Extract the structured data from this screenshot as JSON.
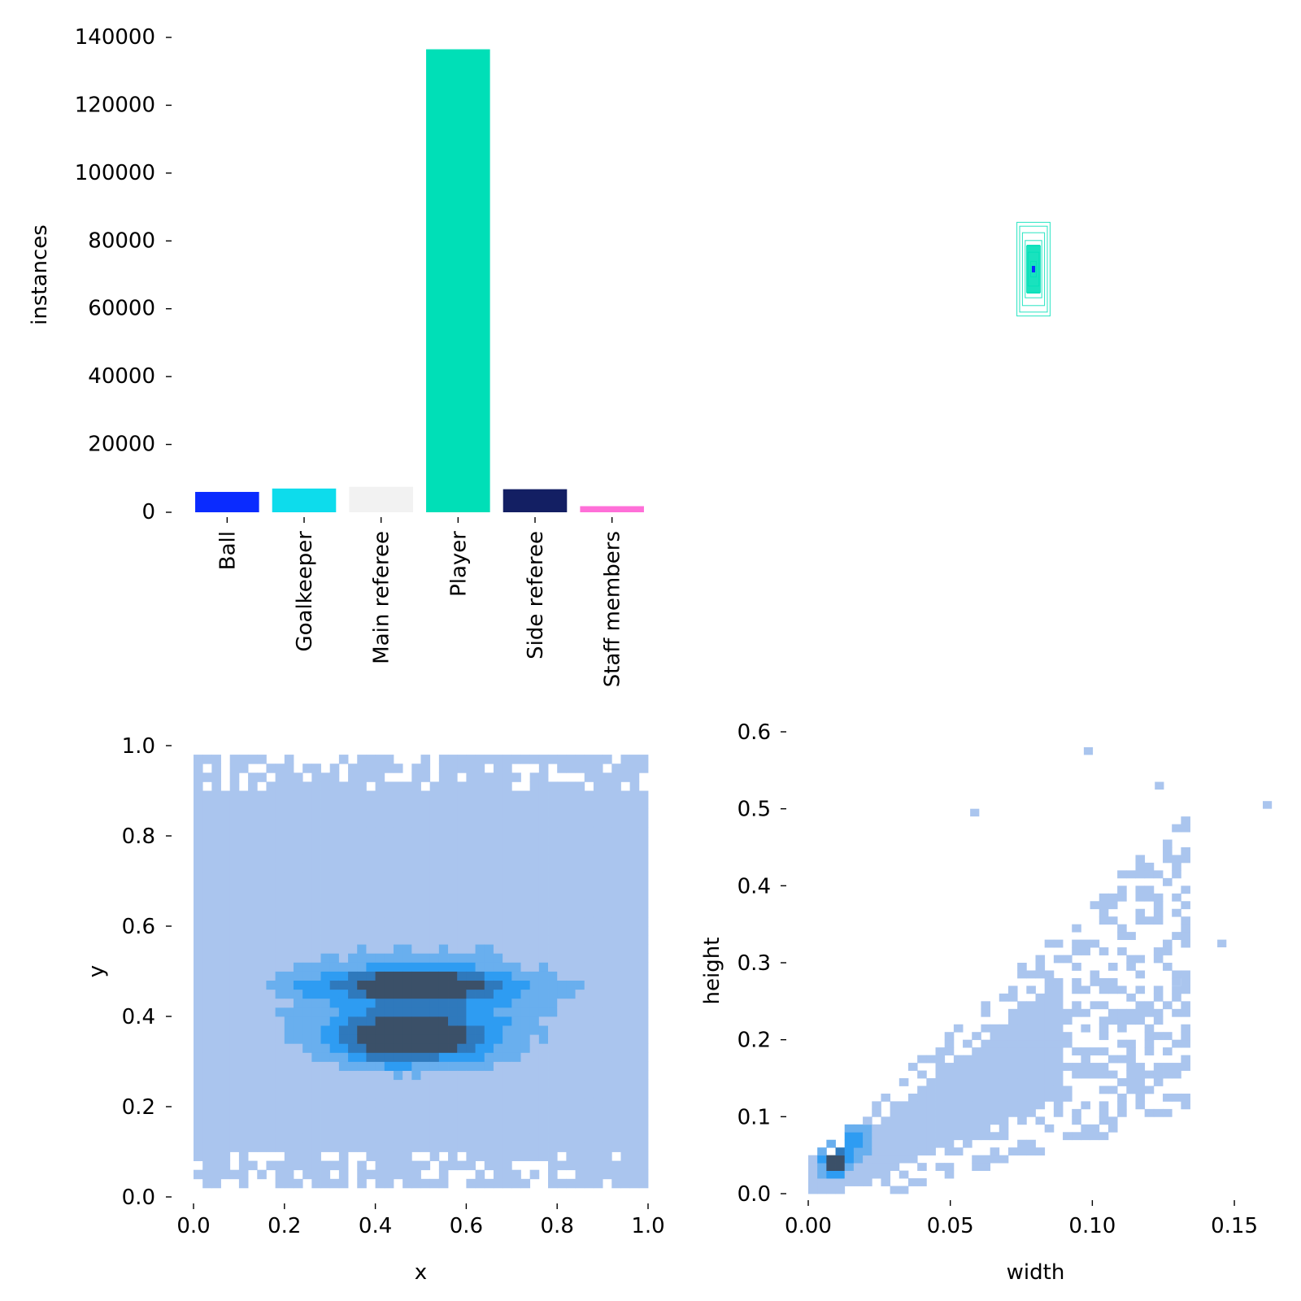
{
  "chart_data": [
    {
      "type": "bar",
      "ylabel": "instances",
      "ylim": [
        0,
        140000
      ],
      "yticks": [
        0,
        20000,
        40000,
        60000,
        80000,
        100000,
        120000,
        140000
      ],
      "categories": [
        "Ball",
        "Goalkeeper",
        "Main referee",
        "Player",
        "Side referee",
        "Staff members"
      ],
      "values": [
        6000,
        7000,
        7500,
        136500,
        6800,
        1800
      ],
      "colors": [
        "#0A2BFF",
        "#0DDCEC",
        "#F2F2F2",
        "#00DFB7",
        "#131F63",
        "#FF6FD8"
      ]
    },
    {
      "type": "box-overlay",
      "description_label": "bounding boxes",
      "color": "#00DFB7",
      "boxes_wh": [
        [
          0.12,
          0.36
        ],
        [
          0.1,
          0.33
        ],
        [
          0.08,
          0.28
        ],
        [
          0.06,
          0.22
        ],
        [
          0.05,
          0.18
        ],
        [
          0.04,
          0.13
        ],
        [
          0.02,
          0.06
        ],
        [
          0.01,
          0.02
        ]
      ]
    },
    {
      "type": "heatmap",
      "xlabel": "x",
      "ylabel": "y",
      "xlim": [
        0,
        1
      ],
      "ylim": [
        0,
        1
      ],
      "xticks": [
        "0.0",
        "0.2",
        "0.4",
        "0.6",
        "0.8",
        "1.0"
      ],
      "yticks": [
        "0.0",
        "0.2",
        "0.4",
        "0.6",
        "0.8",
        "1.0"
      ],
      "bins": 50,
      "density_peak": {
        "x": 0.46,
        "y": 0.35
      },
      "colors": [
        "#AAC5EE",
        "#69AFEE",
        "#2E9CF2",
        "#2F79BC",
        "#3B5068"
      ]
    },
    {
      "type": "heatmap",
      "xlabel": "width",
      "ylabel": "height",
      "xlim": [
        0,
        0.16
      ],
      "ylim": [
        0,
        0.6
      ],
      "xticks": [
        "0.00",
        "0.05",
        "0.10",
        "0.15"
      ],
      "yticks": [
        "0.0",
        "0.1",
        "0.2",
        "0.3",
        "0.4",
        "0.5",
        "0.6"
      ],
      "density_peak": {
        "x": 0.009,
        "y": 0.04
      },
      "colors": [
        "#AAC5EE",
        "#69AFEE",
        "#2E9CF2",
        "#2F79BC",
        "#3B5068"
      ]
    }
  ]
}
